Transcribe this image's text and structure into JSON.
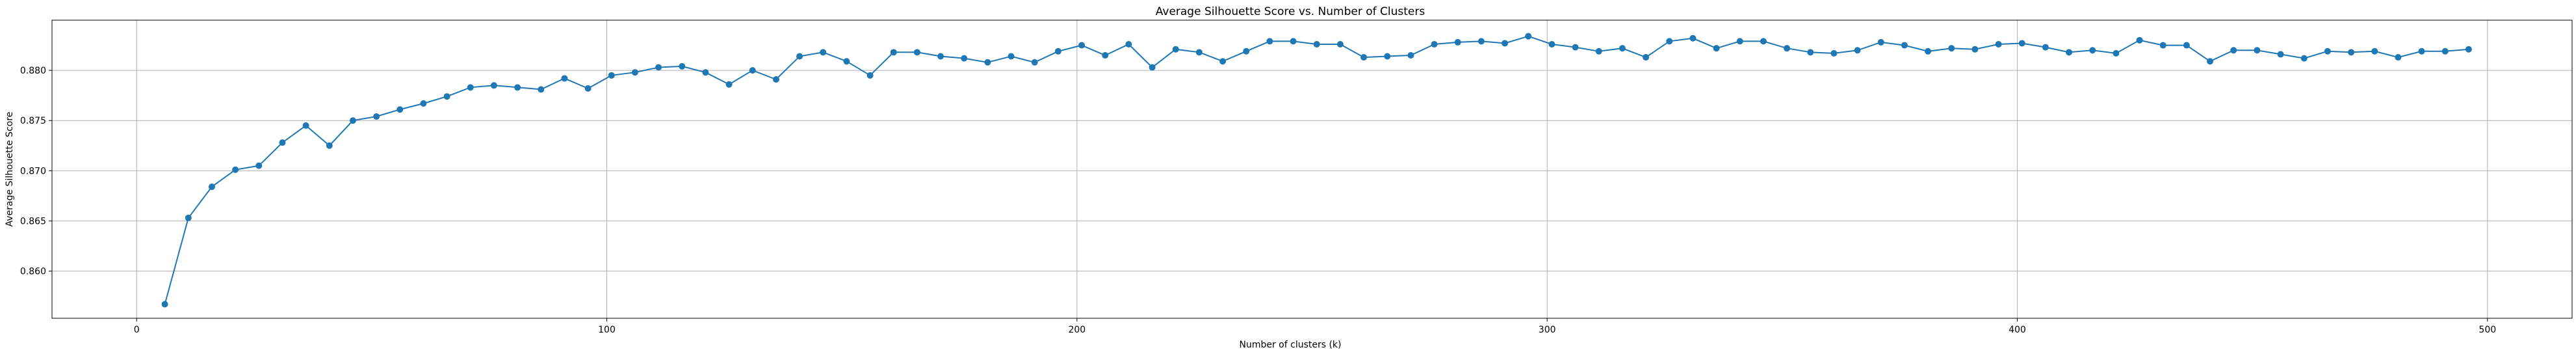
{
  "chart_data": {
    "type": "line",
    "title": "Average Silhouette Score vs. Number of Clusters",
    "xlabel": "Number of clusters (k)",
    "ylabel": "Average Silhouette Score",
    "xlim": [
      -18,
      518
    ],
    "ylim": [
      0.8553,
      0.885
    ],
    "xticks": [
      0,
      100,
      200,
      300,
      400,
      500
    ],
    "yticks": [
      0.86,
      0.865,
      0.87,
      0.875,
      0.88
    ],
    "xtick_labels": [
      "0",
      "100",
      "200",
      "300",
      "400",
      "500"
    ],
    "ytick_labels": [
      "0.860",
      "0.865",
      "0.870",
      "0.875",
      "0.880"
    ],
    "grid": true,
    "color": "#1f77b4",
    "series": [
      {
        "x": [
          6,
          11,
          16,
          21,
          26,
          31,
          36,
          41,
          46,
          51,
          56,
          61,
          66,
          71,
          76,
          81,
          86,
          91,
          96,
          101,
          106,
          111,
          116,
          121,
          126,
          131,
          136,
          141,
          146,
          151,
          156,
          161,
          166,
          171,
          176,
          181,
          186,
          191,
          196,
          201,
          206,
          211,
          216,
          221,
          226,
          231,
          236,
          241,
          246,
          251,
          256,
          261,
          266,
          271,
          276,
          281,
          286,
          291,
          296,
          301,
          306,
          311,
          316,
          321,
          326,
          331,
          336,
          341,
          346,
          351,
          356,
          361,
          366,
          371,
          376,
          381,
          386,
          391,
          396,
          401,
          406,
          411,
          416,
          421,
          426,
          431,
          436,
          441,
          446,
          451,
          456,
          461,
          466,
          471,
          476,
          481,
          486,
          491,
          496
        ],
        "values": [
          0.8567,
          0.8653,
          0.8684,
          0.8701,
          0.8705,
          0.8728,
          0.8745,
          0.8725,
          0.875,
          0.8754,
          0.8761,
          0.8767,
          0.8774,
          0.8783,
          0.8785,
          0.8783,
          0.8781,
          0.8792,
          0.8782,
          0.8795,
          0.8798,
          0.8803,
          0.8804,
          0.8798,
          0.8786,
          0.88,
          0.8791,
          0.8814,
          0.8818,
          0.8809,
          0.8795,
          0.8818,
          0.8818,
          0.8814,
          0.8812,
          0.8808,
          0.8814,
          0.8808,
          0.8819,
          0.8825,
          0.8815,
          0.8826,
          0.8803,
          0.8821,
          0.8818,
          0.8809,
          0.8819,
          0.8829,
          0.8829,
          0.8826,
          0.8826,
          0.8813,
          0.8814,
          0.8815,
          0.8826,
          0.8828,
          0.8829,
          0.8827,
          0.8834,
          0.8826,
          0.8823,
          0.8819,
          0.8822,
          0.8813,
          0.8829,
          0.8832,
          0.8822,
          0.8829,
          0.8829,
          0.8822,
          0.8818,
          0.8817,
          0.882,
          0.8828,
          0.8825,
          0.8819,
          0.8822,
          0.8821,
          0.8826,
          0.8827,
          0.8823,
          0.8818,
          0.882,
          0.8817,
          0.883,
          0.8825,
          0.8825,
          0.8809,
          0.882,
          0.882,
          0.8816,
          0.8812,
          0.8819,
          0.8818,
          0.8819,
          0.8813,
          0.8819,
          0.8819,
          0.8821
        ]
      }
    ]
  }
}
